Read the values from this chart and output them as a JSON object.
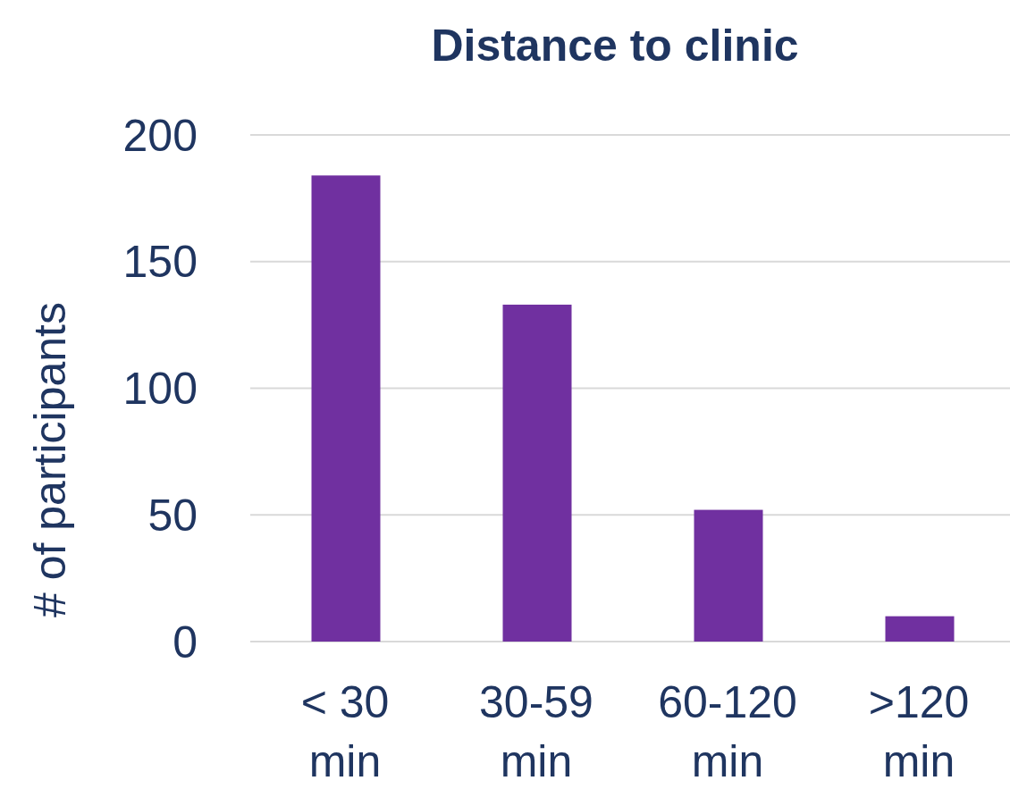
{
  "chart_data": {
    "type": "bar",
    "title": "Distance to clinic",
    "ylabel": "# of participants",
    "categories": [
      "< 30 min",
      "30-59 min",
      "60-120 min",
      ">120 min"
    ],
    "values": [
      184,
      133,
      52,
      10
    ],
    "color": "#7030a0",
    "ylim": [
      0,
      200
    ],
    "yticks": [
      0,
      50,
      100,
      150,
      200
    ],
    "grid": "y"
  }
}
